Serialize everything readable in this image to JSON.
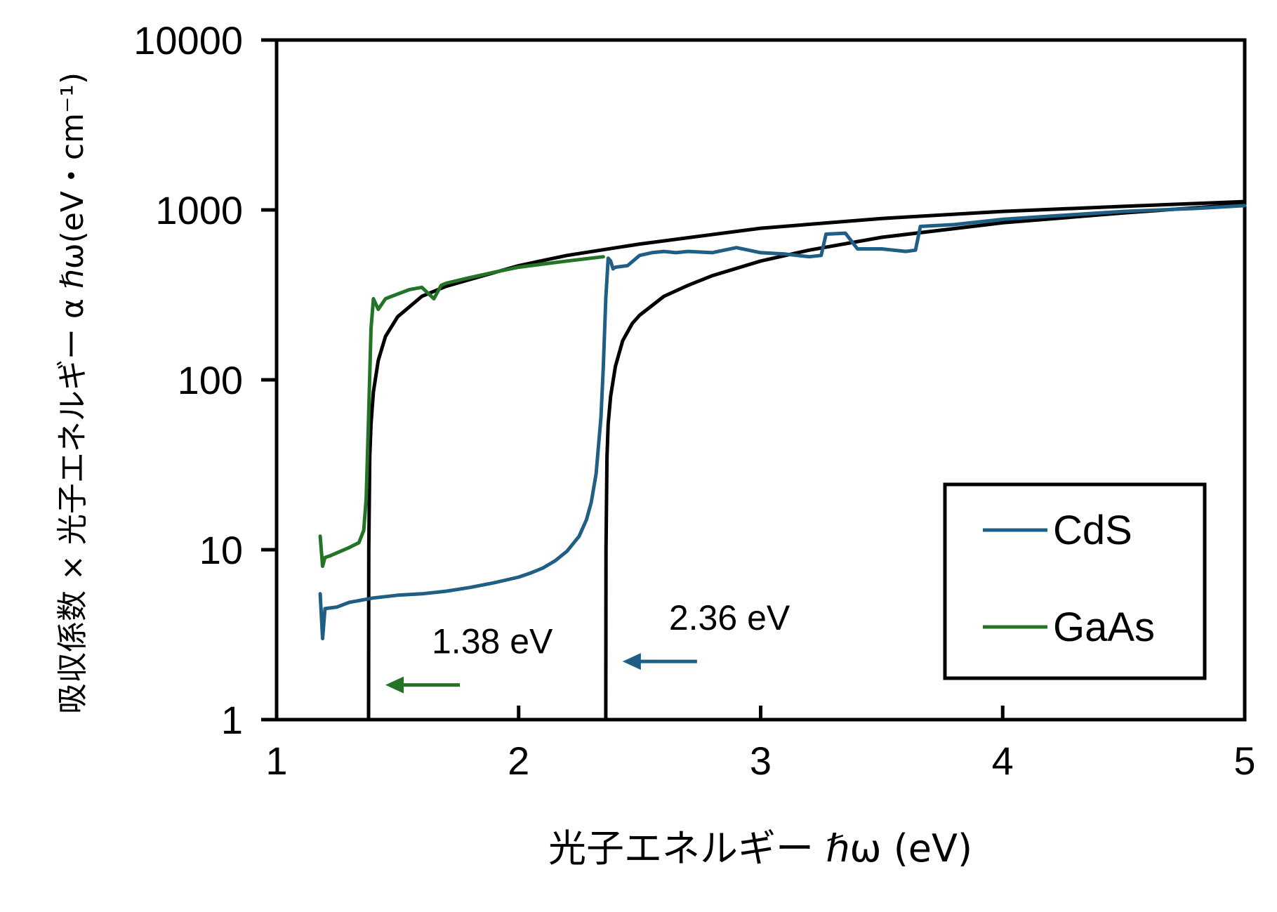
{
  "chart_data": {
    "type": "line",
    "xlabel": "光子エネルギー ℏω (eV)",
    "ylabel": "吸収係数 × 光子エネルギー α ℏω(eV・cm⁻¹)",
    "xlim": [
      1,
      5
    ],
    "ylim": [
      1,
      10000
    ],
    "yscale": "log",
    "x_ticks": [
      "1",
      "2",
      "3",
      "4",
      "5"
    ],
    "y_ticks": [
      "1",
      "10",
      "100",
      "1000",
      "10000"
    ],
    "grid": false,
    "legend_position": "bottom-right",
    "colors": {
      "CdS": "#1f5f86",
      "GaAs": "#237427",
      "fit": "#000000"
    },
    "series": [
      {
        "name": "CdS",
        "x": [
          1.18,
          1.19,
          1.2,
          1.25,
          1.3,
          1.4,
          1.5,
          1.6,
          1.7,
          1.8,
          1.9,
          2.0,
          2.05,
          2.1,
          2.15,
          2.2,
          2.25,
          2.28,
          2.3,
          2.32,
          2.34,
          2.35,
          2.36,
          2.37,
          2.38,
          2.39,
          2.4,
          2.45,
          2.5,
          2.55,
          2.6,
          2.65,
          2.7,
          2.8,
          2.9,
          3.0,
          3.1,
          3.2,
          3.25,
          3.27,
          3.35,
          3.4,
          3.5,
          3.6,
          3.64,
          3.66,
          3.8,
          4.0,
          4.2,
          4.5,
          4.8,
          5.0
        ],
        "y": [
          5.5,
          3.0,
          4.5,
          4.6,
          4.9,
          5.2,
          5.4,
          5.5,
          5.7,
          6.0,
          6.4,
          6.9,
          7.3,
          7.8,
          8.6,
          9.8,
          12,
          15,
          19,
          28,
          60,
          120,
          300,
          520,
          500,
          450,
          460,
          470,
          540,
          560,
          570,
          560,
          570,
          560,
          600,
          560,
          550,
          530,
          540,
          720,
          730,
          590,
          590,
          570,
          580,
          800,
          820,
          880,
          920,
          980,
          1020,
          1060
        ]
      },
      {
        "name": "GaAs",
        "x": [
          1.18,
          1.19,
          1.2,
          1.22,
          1.25,
          1.3,
          1.34,
          1.36,
          1.37,
          1.38,
          1.39,
          1.4,
          1.42,
          1.45,
          1.5,
          1.55,
          1.6,
          1.65,
          1.68,
          1.7,
          1.8,
          1.9,
          2.0,
          2.1,
          2.2,
          2.3,
          2.35
        ],
        "y": [
          12,
          8,
          9,
          9.2,
          9.6,
          10.3,
          11,
          13,
          20,
          60,
          200,
          300,
          260,
          300,
          320,
          340,
          350,
          300,
          360,
          370,
          400,
          430,
          460,
          480,
          500,
          520,
          530
        ]
      },
      {
        "name": "",
        "x": [
          1.38,
          1.381,
          1.385,
          1.39,
          1.4,
          1.42,
          1.45,
          1.5,
          1.6,
          1.7,
          1.8,
          2.0,
          2.2,
          2.5,
          3.0,
          3.5,
          4.0,
          4.5,
          5.0
        ],
        "y": [
          1,
          10,
          35,
          55,
          85,
          130,
          180,
          235,
          310,
          355,
          390,
          470,
          540,
          630,
          780,
          890,
          980,
          1050,
          1120
        ]
      },
      {
        "name": "",
        "x": [
          2.36,
          2.361,
          2.365,
          2.37,
          2.38,
          2.4,
          2.43,
          2.47,
          2.5,
          2.6,
          2.7,
          2.8,
          3.0,
          3.2,
          3.5,
          4.0,
          4.5,
          5.0
        ],
        "y": [
          1,
          10,
          35,
          55,
          80,
          120,
          170,
          215,
          240,
          310,
          360,
          410,
          500,
          580,
          690,
          840,
          960,
          1080
        ]
      }
    ],
    "annotations": [
      {
        "text": "1.38 eV",
        "x": 1.38,
        "color": "#237427",
        "arrow_y": 1.6
      },
      {
        "text": "2.36 eV",
        "x": 2.36,
        "color": "#1f5f86",
        "arrow_y": 2.2
      }
    ]
  }
}
